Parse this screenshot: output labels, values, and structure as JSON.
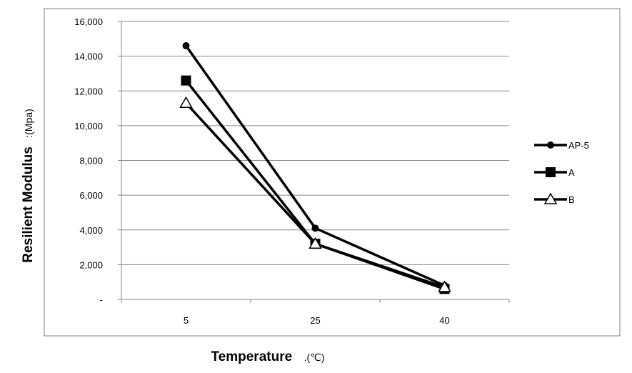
{
  "chart_data": {
    "type": "line",
    "title": "",
    "xlabel": "Temperature",
    "xlabel_unit": ".(℃)",
    "ylabel": "Resilient Modulus",
    "ylabel_unit": ":(Mpa)",
    "categories": [
      "5",
      "25",
      "40"
    ],
    "ylim": [
      0,
      16000
    ],
    "yticks": [
      0,
      2000,
      4000,
      6000,
      8000,
      10000,
      12000,
      14000,
      16000
    ],
    "ytick_labels": [
      "-",
      "2,000",
      "4,000",
      "6,000",
      "8,000",
      "10,000",
      "12,000",
      "14,000",
      "16,000"
    ],
    "grid": true,
    "legend_position": "right",
    "series": [
      {
        "name": "AP-5",
        "marker": "circle",
        "values": [
          14600,
          4100,
          800
        ]
      },
      {
        "name": "A",
        "marker": "square",
        "values": [
          12600,
          3200,
          600
        ]
      },
      {
        "name": "B",
        "marker": "triangle-open",
        "values": [
          11300,
          3200,
          700
        ]
      }
    ],
    "colors": {
      "line": "#000000",
      "grid": "#888888",
      "frame": "#808080"
    }
  }
}
